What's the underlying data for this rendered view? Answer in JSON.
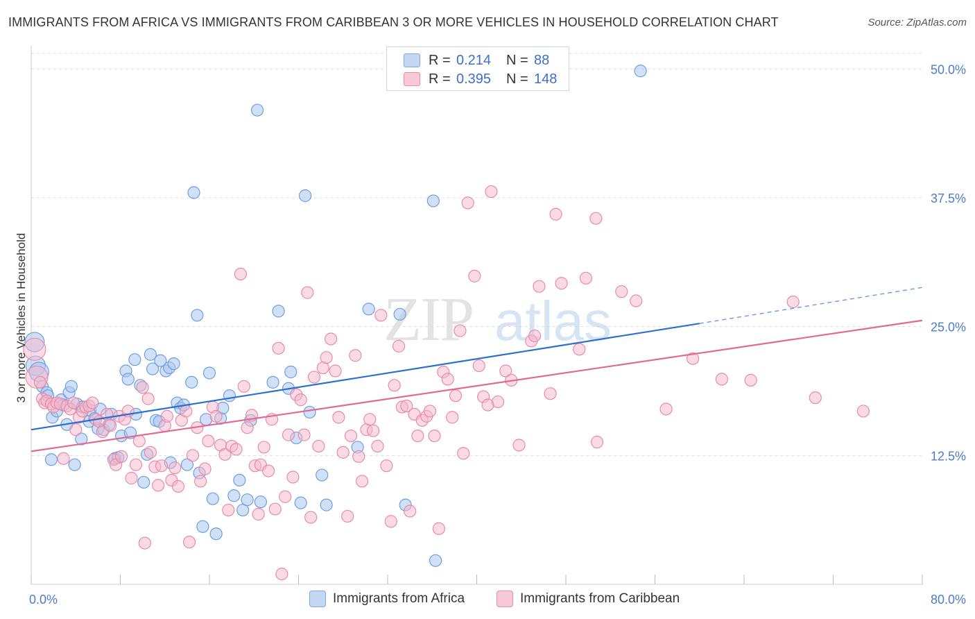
{
  "title": "IMMIGRANTS FROM AFRICA VS IMMIGRANTS FROM CARIBBEAN 3 OR MORE VEHICLES IN HOUSEHOLD CORRELATION CHART",
  "source": "Source: ZipAtlas.com",
  "colors": {
    "africa_fill": "#aac6f0",
    "africa_stroke": "#6f9ee0",
    "africa_line": "#2c6fcc",
    "caribbean_fill": "#f5b8cb",
    "caribbean_stroke": "#e98aa8",
    "caribbean_line": "#e06a93",
    "grid": "#dddddd",
    "tick_label": "#4a7cc9"
  },
  "legend": {
    "rows": [
      {
        "r_label": "R =",
        "r_value": "0.214",
        "n_label": "N =",
        "n_value": "88"
      },
      {
        "r_label": "R =",
        "r_value": "0.395",
        "n_label": "N =",
        "n_value": "148"
      }
    ]
  },
  "bottom_legend": {
    "africa": "Immigrants from Africa",
    "caribbean": "Immigrants from Caribbean"
  },
  "chart_data": {
    "type": "scatter",
    "xlabel": "",
    "ylabel": "3 or more Vehicles in Household",
    "xlim": [
      0,
      80
    ],
    "ylim": [
      0,
      51.5
    ],
    "x_tick_labels": [
      "0.0%",
      "80.0%"
    ],
    "y_ticks": [
      12.5,
      25.0,
      37.5,
      50.0
    ],
    "y_tick_labels": [
      "12.5%",
      "25.0%",
      "37.5%",
      "50.0%"
    ],
    "grid": true,
    "watermark": "ZIPatlas",
    "series": [
      {
        "name": "Immigrants from Africa",
        "R": 0.214,
        "N": 88,
        "trendline": {
          "x0": 0,
          "y0": 15.0,
          "x1": 60,
          "y1": 25.3,
          "dashed_to_x": 80,
          "dashed_to_y": 28.8
        },
        "points": [
          [
            0.3,
            23.5
          ],
          [
            0.4,
            21.2
          ],
          [
            0.7,
            20.6
          ],
          [
            1.0,
            19.2
          ],
          [
            1.4,
            18.6
          ],
          [
            1.5,
            18.3
          ],
          [
            1.8,
            12.1
          ],
          [
            1.9,
            16.2
          ],
          [
            2.3,
            16.8
          ],
          [
            2.7,
            17.9
          ],
          [
            2.9,
            17.4
          ],
          [
            3.2,
            15.5
          ],
          [
            3.4,
            18.6
          ],
          [
            3.6,
            19.2
          ],
          [
            3.9,
            11.6
          ],
          [
            4.1,
            17.5
          ],
          [
            4.5,
            14.1
          ],
          [
            4.6,
            17.2
          ],
          [
            5.2,
            15.8
          ],
          [
            5.3,
            16.9
          ],
          [
            5.7,
            16.1
          ],
          [
            6.0,
            15.1
          ],
          [
            6.2,
            17.0
          ],
          [
            6.5,
            15.0
          ],
          [
            7.0,
            15.5
          ],
          [
            7.2,
            16.5
          ],
          [
            7.5,
            12.2
          ],
          [
            7.8,
            12.3
          ],
          [
            8.1,
            14.4
          ],
          [
            8.5,
            20.7
          ],
          [
            8.7,
            19.9
          ],
          [
            8.9,
            14.7
          ],
          [
            9.3,
            21.8
          ],
          [
            9.4,
            16.5
          ],
          [
            9.8,
            19.3
          ],
          [
            10.1,
            9.9
          ],
          [
            10.4,
            12.6
          ],
          [
            10.7,
            22.3
          ],
          [
            10.9,
            20.9
          ],
          [
            11.2,
            15.9
          ],
          [
            11.5,
            15.8
          ],
          [
            11.6,
            21.7
          ],
          [
            12.1,
            20.7
          ],
          [
            12.4,
            21.0
          ],
          [
            12.5,
            11.8
          ],
          [
            12.8,
            21.4
          ],
          [
            13.1,
            17.6
          ],
          [
            13.4,
            17.1
          ],
          [
            13.7,
            17.4
          ],
          [
            14.0,
            11.6
          ],
          [
            14.4,
            19.6
          ],
          [
            14.6,
            38.0
          ],
          [
            14.9,
            26.1
          ],
          [
            15.1,
            10.8
          ],
          [
            15.4,
            5.6
          ],
          [
            15.7,
            16.0
          ],
          [
            16.0,
            20.5
          ],
          [
            16.3,
            8.3
          ],
          [
            16.6,
            4.9
          ],
          [
            17.0,
            16.1
          ],
          [
            17.2,
            17.1
          ],
          [
            17.8,
            18.3
          ],
          [
            18.2,
            8.6
          ],
          [
            18.7,
            10.1
          ],
          [
            19.0,
            7.2
          ],
          [
            19.4,
            8.2
          ],
          [
            19.7,
            15.9
          ],
          [
            20.3,
            46.0
          ],
          [
            20.6,
            8.0
          ],
          [
            21.7,
            19.6
          ],
          [
            22.2,
            26.5
          ],
          [
            23.1,
            19.0
          ],
          [
            23.3,
            20.6
          ],
          [
            23.8,
            14.2
          ],
          [
            24.2,
            7.9
          ],
          [
            24.6,
            37.7
          ],
          [
            25.0,
            16.7
          ],
          [
            26.1,
            10.6
          ],
          [
            26.5,
            7.7
          ],
          [
            29.3,
            13.3
          ],
          [
            30.3,
            26.7
          ],
          [
            33.1,
            26.2
          ],
          [
            33.6,
            7.7
          ],
          [
            36.1,
            37.2
          ],
          [
            36.3,
            2.3
          ],
          [
            54.7,
            49.8
          ]
        ]
      },
      {
        "name": "Immigrants from Caribbean",
        "R": 0.395,
        "N": 148,
        "trendline": {
          "x0": 0,
          "y0": 12.9,
          "x1": 80,
          "y1": 25.6
        },
        "points": [
          [
            0.3,
            22.8
          ],
          [
            0.5,
            20.1
          ],
          [
            0.8,
            19.6
          ],
          [
            1.0,
            18.0
          ],
          [
            1.2,
            17.6
          ],
          [
            1.4,
            17.8
          ],
          [
            1.8,
            17.5
          ],
          [
            2.0,
            17.2
          ],
          [
            2.3,
            17.6
          ],
          [
            2.6,
            17.5
          ],
          [
            2.9,
            12.2
          ],
          [
            3.2,
            17.3
          ],
          [
            3.5,
            17.0
          ],
          [
            3.8,
            17.6
          ],
          [
            4.0,
            15.0
          ],
          [
            4.3,
            16.2
          ],
          [
            4.6,
            16.8
          ],
          [
            4.9,
            17.2
          ],
          [
            5.2,
            17.3
          ],
          [
            5.5,
            17.6
          ],
          [
            5.8,
            16.0
          ],
          [
            6.1,
            15.8
          ],
          [
            6.4,
            14.8
          ],
          [
            6.8,
            16.5
          ],
          [
            7.1,
            15.4
          ],
          [
            7.4,
            12.1
          ],
          [
            7.6,
            11.6
          ],
          [
            7.9,
            16.3
          ],
          [
            8.1,
            12.4
          ],
          [
            8.4,
            16.0
          ],
          [
            8.7,
            16.8
          ],
          [
            9.0,
            10.3
          ],
          [
            9.4,
            11.6
          ],
          [
            9.7,
            13.9
          ],
          [
            10.0,
            19.1
          ],
          [
            10.2,
            4.0
          ],
          [
            10.5,
            18.0
          ],
          [
            10.7,
            12.8
          ],
          [
            11.1,
            11.4
          ],
          [
            11.4,
            9.6
          ],
          [
            11.7,
            11.5
          ],
          [
            12.0,
            15.4
          ],
          [
            12.2,
            16.3
          ],
          [
            12.6,
            10.1
          ],
          [
            12.9,
            11.3
          ],
          [
            13.2,
            9.5
          ],
          [
            13.5,
            15.9
          ],
          [
            13.9,
            16.8
          ],
          [
            14.2,
            4.1
          ],
          [
            14.5,
            12.5
          ],
          [
            14.9,
            15.2
          ],
          [
            15.2,
            10.0
          ],
          [
            15.6,
            11.2
          ],
          [
            15.9,
            13.9
          ],
          [
            16.3,
            17.2
          ],
          [
            16.6,
            16.3
          ],
          [
            17.0,
            13.5
          ],
          [
            17.4,
            12.6
          ],
          [
            17.7,
            7.2
          ],
          [
            18.0,
            13.4
          ],
          [
            18.4,
            13.1
          ],
          [
            18.8,
            30.1
          ],
          [
            19.1,
            19.2
          ],
          [
            19.4,
            15.2
          ],
          [
            19.8,
            16.4
          ],
          [
            20.1,
            11.5
          ],
          [
            20.4,
            6.8
          ],
          [
            20.6,
            11.6
          ],
          [
            20.9,
            13.3
          ],
          [
            21.3,
            11.0
          ],
          [
            21.6,
            16.0
          ],
          [
            21.9,
            7.3
          ],
          [
            22.2,
            22.9
          ],
          [
            22.5,
            1.0
          ],
          [
            22.8,
            8.5
          ],
          [
            23.1,
            14.5
          ],
          [
            23.5,
            10.4
          ],
          [
            23.8,
            18.4
          ],
          [
            24.2,
            17.9
          ],
          [
            24.5,
            14.5
          ],
          [
            24.8,
            28.3
          ],
          [
            25.1,
            6.5
          ],
          [
            25.4,
            20.1
          ],
          [
            25.8,
            13.4
          ],
          [
            26.2,
            21.0
          ],
          [
            26.5,
            22.0
          ],
          [
            26.9,
            23.8
          ],
          [
            27.3,
            20.7
          ],
          [
            27.6,
            16.2
          ],
          [
            28.0,
            12.8
          ],
          [
            28.4,
            6.6
          ],
          [
            28.7,
            14.4
          ],
          [
            29.1,
            22.2
          ],
          [
            29.4,
            12.4
          ],
          [
            29.7,
            10.0
          ],
          [
            30.1,
            15.0
          ],
          [
            30.4,
            16.0
          ],
          [
            30.7,
            14.9
          ],
          [
            31.1,
            13.4
          ],
          [
            31.4,
            26.1
          ],
          [
            31.9,
            11.5
          ],
          [
            32.3,
            6.1
          ],
          [
            32.6,
            19.3
          ],
          [
            33.0,
            23.1
          ],
          [
            33.3,
            17.2
          ],
          [
            33.7,
            17.3
          ],
          [
            34.0,
            7.1
          ],
          [
            34.4,
            16.5
          ],
          [
            34.7,
            14.4
          ],
          [
            35.1,
            15.9
          ],
          [
            35.5,
            16.3
          ],
          [
            35.8,
            16.8
          ],
          [
            36.2,
            14.4
          ],
          [
            36.6,
            5.4
          ],
          [
            37.0,
            20.6
          ],
          [
            37.4,
            19.9
          ],
          [
            37.8,
            16.2
          ],
          [
            38.1,
            18.3
          ],
          [
            38.5,
            24.6
          ],
          [
            38.8,
            12.7
          ],
          [
            39.2,
            37.0
          ],
          [
            39.8,
            29.9
          ],
          [
            40.2,
            21.2
          ],
          [
            40.6,
            18.2
          ],
          [
            41.0,
            17.4
          ],
          [
            41.3,
            38.1
          ],
          [
            41.9,
            17.7
          ],
          [
            42.6,
            20.7
          ],
          [
            43.1,
            19.8
          ],
          [
            43.8,
            13.5
          ],
          [
            44.9,
            23.6
          ],
          [
            45.2,
            24.1
          ],
          [
            45.6,
            28.9
          ],
          [
            46.6,
            18.5
          ],
          [
            47.1,
            35.9
          ],
          [
            47.6,
            29.2
          ],
          [
            49.2,
            22.8
          ],
          [
            49.8,
            29.7
          ],
          [
            50.8,
            13.8
          ],
          [
            50.7,
            35.5
          ],
          [
            53.0,
            28.4
          ],
          [
            54.3,
            27.5
          ],
          [
            57.0,
            17.0
          ],
          [
            59.4,
            21.9
          ],
          [
            62.0,
            19.9
          ],
          [
            64.6,
            19.8
          ],
          [
            68.4,
            27.4
          ],
          [
            70.4,
            18.1
          ],
          [
            74.7,
            16.8
          ]
        ]
      }
    ]
  }
}
